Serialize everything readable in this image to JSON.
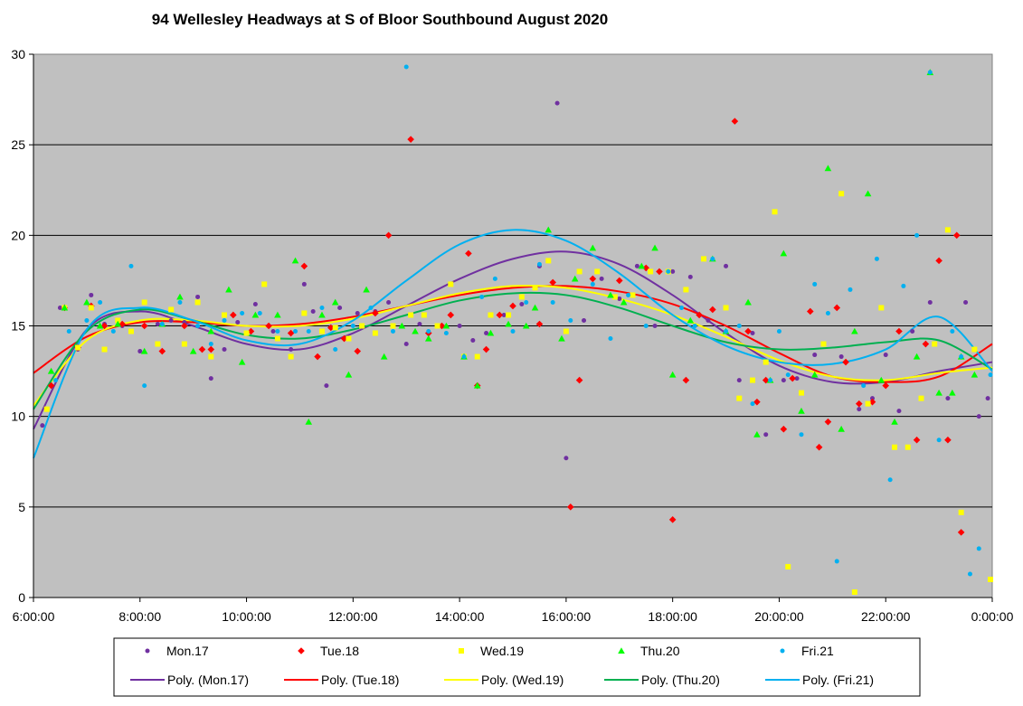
{
  "chart_data": {
    "type": "scatter",
    "title": "94 Wellesley Headways at S of Bloor Southbound August 2020",
    "xlabel": "",
    "ylabel": "",
    "xlim": [
      "6:00:00",
      "0:00:00"
    ],
    "ylim": [
      0,
      30
    ],
    "x_ticks": [
      "6:00:00",
      "8:00:00",
      "10:00:00",
      "12:00:00",
      "14:00:00",
      "16:00:00",
      "18:00:00",
      "20:00:00",
      "22:00:00",
      "0:00:00"
    ],
    "y_ticks": [
      "0",
      "5",
      "10",
      "15",
      "20",
      "25",
      "30"
    ],
    "grid": "horizontal",
    "legend_position": "bottom",
    "series": [
      {
        "name": "Mon.17",
        "color": "#7030a0",
        "marker": "circle",
        "x": [
          "6:10",
          "6:30",
          "6:50",
          "7:05",
          "7:20",
          "7:40",
          "8:00",
          "8:20",
          "8:35",
          "8:50",
          "9:05",
          "9:20",
          "9:35",
          "9:50",
          "10:10",
          "10:30",
          "10:50",
          "11:05",
          "11:15",
          "11:30",
          "11:45",
          "12:05",
          "12:25",
          "12:40",
          "13:00",
          "13:15",
          "13:40",
          "14:00",
          "14:15",
          "14:30",
          "14:50",
          "15:10",
          "15:30",
          "15:50",
          "16:00",
          "16:20",
          "16:40",
          "17:00",
          "17:20",
          "17:40",
          "18:00",
          "18:20",
          "18:40",
          "19:00",
          "19:15",
          "19:30",
          "19:45",
          "20:05",
          "20:20",
          "20:40",
          "20:55",
          "21:10",
          "21:30",
          "21:45",
          "22:00",
          "22:15",
          "22:30",
          "22:50",
          "23:10",
          "23:30",
          "23:45",
          "23:55"
        ],
        "y": [
          9.5,
          16.0,
          13.7,
          16.7,
          15.1,
          15.0,
          13.6,
          15.1,
          15.3,
          15.2,
          16.6,
          12.1,
          13.7,
          15.2,
          16.2,
          14.7,
          13.7,
          17.3,
          15.8,
          11.7,
          16.0,
          15.7,
          15.8,
          16.3,
          14.0,
          15.1,
          15.0,
          15.0,
          14.2,
          14.6,
          15.6,
          16.2,
          18.3,
          27.3,
          7.7,
          15.3,
          17.6,
          16.5,
          18.3,
          15.0,
          18.0,
          17.7,
          15.3,
          18.3,
          12.0,
          14.6,
          9.0,
          12.0,
          12.1,
          13.4,
          9.7,
          13.3,
          10.4,
          11.0,
          13.4,
          10.3,
          14.7,
          16.3,
          11.0,
          16.3,
          10.0,
          11.0
        ],
        "fit_label": "Poly. (Mon.17)",
        "fit": {
          "x": [
            "6:00",
            "7:00",
            "8:00",
            "9:00",
            "10:00",
            "11:00",
            "12:00",
            "13:00",
            "14:00",
            "15:00",
            "16:00",
            "17:00",
            "18:00",
            "19:00",
            "20:00",
            "21:00",
            "22:00",
            "23:00",
            "0:00"
          ],
          "y": [
            9.3,
            14.8,
            15.8,
            15.0,
            14.0,
            13.7,
            14.6,
            16.1,
            17.6,
            18.7,
            19.1,
            18.4,
            16.7,
            14.6,
            12.8,
            11.9,
            11.9,
            12.5,
            13.0
          ]
        }
      },
      {
        "name": "Tue.18",
        "color": "#ff0000",
        "marker": "diamond",
        "x": [
          "6:20",
          "6:35",
          "6:50",
          "7:05",
          "7:20",
          "7:40",
          "8:05",
          "8:25",
          "8:50",
          "9:10",
          "9:20",
          "9:45",
          "10:05",
          "10:25",
          "10:50",
          "11:05",
          "11:20",
          "11:35",
          "11:50",
          "12:05",
          "12:25",
          "12:40",
          "13:05",
          "13:25",
          "13:40",
          "13:50",
          "14:10",
          "14:20",
          "14:30",
          "14:45",
          "15:00",
          "15:30",
          "15:45",
          "16:05",
          "16:15",
          "16:30",
          "17:00",
          "17:30",
          "17:45",
          "18:00",
          "18:15",
          "18:30",
          "18:45",
          "19:10",
          "19:25",
          "19:35",
          "19:45",
          "20:05",
          "20:15",
          "20:35",
          "20:45",
          "20:55",
          "21:05",
          "21:15",
          "21:30",
          "21:45",
          "22:00",
          "22:15",
          "22:35",
          "22:45",
          "23:00",
          "23:10",
          "23:20",
          "23:25"
        ],
        "y": [
          11.7,
          16.0,
          13.8,
          16.1,
          15.0,
          15.1,
          15.0,
          13.6,
          15.0,
          13.7,
          13.7,
          15.6,
          14.7,
          15.0,
          14.6,
          18.3,
          13.3,
          14.9,
          14.3,
          13.6,
          15.7,
          20.0,
          25.3,
          14.6,
          15.0,
          15.6,
          19.0,
          11.7,
          13.7,
          15.6,
          16.1,
          15.1,
          17.4,
          5.0,
          12.0,
          17.6,
          17.5,
          18.2,
          18.0,
          4.3,
          12.0,
          15.6,
          15.9,
          26.3,
          14.7,
          10.8,
          12.0,
          9.3,
          12.1,
          15.8,
          8.3,
          9.7,
          16.0,
          13.0,
          10.7,
          10.8,
          11.7,
          14.7,
          8.7,
          14.0,
          18.6,
          8.7,
          20.0,
          3.6
        ],
        "fit_label": "Poly. (Tue.18)",
        "fit": {
          "x": [
            "6:00",
            "7:00",
            "8:00",
            "9:00",
            "10:00",
            "11:00",
            "12:00",
            "13:00",
            "14:00",
            "15:00",
            "16:00",
            "17:00",
            "18:00",
            "19:00",
            "20:00",
            "21:00",
            "22:00",
            "23:00",
            "0:00"
          ],
          "y": [
            12.4,
            14.4,
            15.2,
            15.2,
            15.0,
            15.1,
            15.5,
            16.1,
            16.7,
            17.1,
            17.2,
            16.9,
            16.2,
            15.0,
            13.5,
            12.2,
            11.9,
            12.2,
            14.0
          ]
        }
      },
      {
        "name": "Wed.19",
        "color": "#ffff00",
        "marker": "square",
        "x": [
          "6:15",
          "6:35",
          "6:50",
          "7:05",
          "7:20",
          "7:35",
          "7:50",
          "8:05",
          "8:20",
          "8:35",
          "8:50",
          "9:05",
          "9:20",
          "9:35",
          "10:00",
          "10:20",
          "10:35",
          "10:50",
          "11:05",
          "11:25",
          "11:40",
          "11:55",
          "12:10",
          "12:25",
          "12:45",
          "13:05",
          "13:20",
          "13:35",
          "13:50",
          "14:05",
          "14:20",
          "14:35",
          "14:55",
          "15:10",
          "15:25",
          "15:40",
          "16:00",
          "16:15",
          "16:35",
          "16:55",
          "17:15",
          "17:35",
          "17:55",
          "18:15",
          "18:35",
          "19:00",
          "19:15",
          "19:30",
          "19:45",
          "19:55",
          "20:10",
          "20:25",
          "20:50",
          "21:10",
          "21:25",
          "21:40",
          "21:55",
          "22:10",
          "22:25",
          "22:40",
          "22:55",
          "23:10",
          "23:25",
          "23:40",
          "23:58"
        ],
        "y": [
          10.4,
          16.0,
          13.8,
          16.0,
          13.7,
          15.3,
          14.7,
          16.3,
          14.0,
          15.9,
          14.0,
          16.3,
          13.3,
          15.6,
          14.6,
          17.3,
          14.3,
          13.3,
          15.7,
          14.7,
          14.9,
          14.3,
          15.0,
          14.6,
          15.0,
          15.6,
          15.6,
          15.0,
          17.3,
          13.3,
          13.3,
          15.6,
          15.6,
          16.6,
          17.1,
          18.6,
          14.7,
          18.0,
          18.0,
          16.6,
          16.7,
          18.0,
          18.0,
          17.0,
          18.7,
          16.0,
          11.0,
          12.0,
          13.0,
          21.3,
          1.7,
          11.3,
          14.0,
          22.3,
          0.3,
          10.7,
          16.0,
          8.3,
          8.3,
          11.0,
          14.0,
          20.3,
          4.7,
          13.7,
          1.0
        ],
        "fit_label": "Poly. (Wed.19)",
        "fit": {
          "x": [
            "6:00",
            "7:00",
            "8:00",
            "9:00",
            "10:00",
            "11:00",
            "12:00",
            "13:00",
            "14:00",
            "15:00",
            "16:00",
            "17:00",
            "18:00",
            "19:00",
            "20:00",
            "21:00",
            "22:00",
            "23:00",
            "0:00"
          ],
          "y": [
            10.6,
            14.2,
            15.3,
            15.3,
            15.0,
            15.0,
            15.4,
            16.1,
            16.8,
            17.2,
            17.1,
            16.5,
            15.6,
            14.4,
            13.1,
            12.2,
            12.0,
            12.4,
            12.7
          ]
        }
      },
      {
        "name": "Thu.20",
        "color": "#00ff00",
        "marker": "triangle",
        "x": [
          "6:20",
          "6:35",
          "7:00",
          "7:15",
          "7:35",
          "8:05",
          "8:25",
          "8:45",
          "9:00",
          "9:20",
          "9:40",
          "9:55",
          "10:10",
          "10:35",
          "10:55",
          "11:10",
          "11:25",
          "11:40",
          "11:55",
          "12:15",
          "12:35",
          "12:55",
          "13:10",
          "13:25",
          "13:45",
          "14:05",
          "14:20",
          "14:35",
          "14:55",
          "15:15",
          "15:25",
          "15:40",
          "15:55",
          "16:10",
          "16:30",
          "16:50",
          "17:05",
          "17:25",
          "17:40",
          "18:00",
          "18:20",
          "18:45",
          "19:00",
          "19:25",
          "19:35",
          "19:50",
          "20:05",
          "20:25",
          "20:40",
          "20:55",
          "21:10",
          "21:25",
          "21:40",
          "21:55",
          "22:10",
          "22:35",
          "22:50",
          "23:00",
          "23:15",
          "23:25",
          "23:40"
        ],
        "y": [
          12.5,
          16.0,
          16.3,
          15.0,
          15.1,
          13.6,
          15.1,
          16.6,
          13.6,
          14.7,
          17.0,
          13.0,
          15.6,
          15.6,
          18.6,
          9.7,
          15.6,
          16.3,
          12.3,
          17.0,
          13.3,
          15.0,
          14.7,
          14.3,
          15.0,
          13.3,
          11.7,
          14.6,
          15.1,
          15.0,
          16.0,
          20.3,
          14.3,
          17.6,
          19.3,
          16.7,
          16.3,
          18.3,
          19.3,
          12.3,
          15.3,
          18.7,
          14.7,
          16.3,
          9.0,
          12.0,
          19.0,
          10.3,
          12.3,
          23.7,
          9.3,
          14.7,
          22.3,
          12.0,
          9.7,
          13.3,
          29.0,
          11.3,
          11.3,
          13.3,
          12.3
        ],
        "fit_label": "Poly. (Thu.20)",
        "fit": {
          "x": [
            "6:00",
            "7:00",
            "8:00",
            "9:00",
            "10:00",
            "11:00",
            "12:00",
            "13:00",
            "14:00",
            "15:00",
            "16:00",
            "17:00",
            "18:00",
            "19:00",
            "20:00",
            "21:00",
            "22:00",
            "23:00",
            "0:00"
          ],
          "y": [
            10.4,
            14.7,
            15.9,
            15.3,
            14.5,
            14.3,
            14.8,
            15.6,
            16.4,
            16.8,
            16.7,
            16.0,
            15.0,
            14.1,
            13.7,
            13.8,
            14.1,
            14.2,
            12.6
          ]
        }
      },
      {
        "name": "Fri.21",
        "color": "#00b0f0",
        "marker": "circle",
        "x": [
          "6:25",
          "6:40",
          "7:00",
          "7:15",
          "7:30",
          "7:50",
          "8:05",
          "8:25",
          "8:45",
          "9:05",
          "9:20",
          "9:35",
          "9:55",
          "10:15",
          "10:35",
          "10:55",
          "11:10",
          "11:25",
          "11:40",
          "12:00",
          "12:20",
          "12:45",
          "13:00",
          "13:25",
          "13:45",
          "14:05",
          "14:25",
          "14:40",
          "15:00",
          "15:15",
          "15:30",
          "15:45",
          "16:05",
          "16:30",
          "16:50",
          "17:10",
          "17:30",
          "17:55",
          "18:10",
          "18:25",
          "18:45",
          "19:00",
          "19:15",
          "19:30",
          "19:50",
          "20:00",
          "20:10",
          "20:25",
          "20:40",
          "20:55",
          "21:05",
          "21:20",
          "21:35",
          "21:50",
          "22:05",
          "22:20",
          "22:35",
          "22:50",
          "23:00",
          "23:15",
          "23:25",
          "23:35",
          "23:45",
          "23:58"
        ],
        "y": [
          12.0,
          14.7,
          15.3,
          16.3,
          14.7,
          18.3,
          11.7,
          15.1,
          16.3,
          15.0,
          14.0,
          15.3,
          15.7,
          15.7,
          14.7,
          14.7,
          14.7,
          16.0,
          13.7,
          15.0,
          16.0,
          14.7,
          29.3,
          14.7,
          14.6,
          13.3,
          16.6,
          17.6,
          14.7,
          16.3,
          18.4,
          16.3,
          15.3,
          17.3,
          14.3,
          16.7,
          15.0,
          18.0,
          16.0,
          15.0,
          18.7,
          14.7,
          15.0,
          10.7,
          12.0,
          14.7,
          12.3,
          9.0,
          17.3,
          15.7,
          2.0,
          17.0,
          11.7,
          18.7,
          6.5,
          17.2,
          20.0,
          29.0,
          8.7,
          14.7,
          13.3,
          1.3,
          2.7,
          12.3
        ],
        "fit_label": "Poly. (Fri.21)",
        "fit": {
          "x": [
            "6:00",
            "7:00",
            "8:00",
            "9:00",
            "10:00",
            "11:00",
            "12:00",
            "13:00",
            "14:00",
            "15:00",
            "16:00",
            "17:00",
            "18:00",
            "19:00",
            "20:00",
            "21:00",
            "22:00",
            "23:00",
            "0:00"
          ],
          "y": [
            7.7,
            14.8,
            16.0,
            15.3,
            14.2,
            14.0,
            15.3,
            17.5,
            19.5,
            20.3,
            19.7,
            17.9,
            15.6,
            13.9,
            13.0,
            12.9,
            13.7,
            15.5,
            12.5
          ]
        }
      }
    ]
  }
}
